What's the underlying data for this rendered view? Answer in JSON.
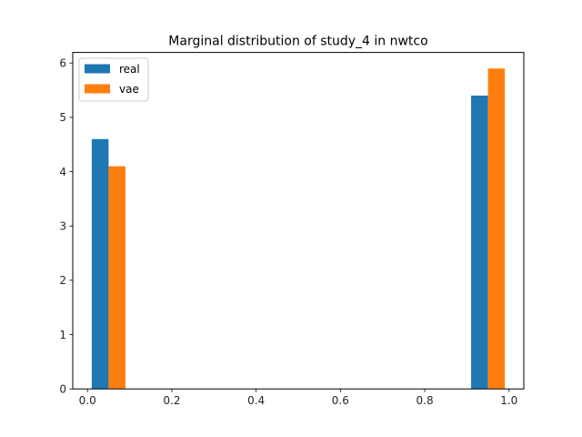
{
  "chart_data": {
    "type": "bar",
    "title": "Marginal distribution of study_4 in nwtco",
    "xlabel": "",
    "ylabel": "",
    "xlim": [
      -0.035,
      1.035
    ],
    "ylim": [
      0,
      6.195
    ],
    "x_ticks": [
      "0.0",
      "0.2",
      "0.4",
      "0.6",
      "0.8",
      "1.0"
    ],
    "y_ticks": [
      "0",
      "1",
      "2",
      "3",
      "4",
      "5",
      "6"
    ],
    "grid": false,
    "legend_position": "top-left",
    "series": [
      {
        "name": "real",
        "color": "#1f77b4",
        "bars": [
          {
            "x0": 0.01,
            "x1": 0.05,
            "value": 4.6
          },
          {
            "x0": 0.91,
            "x1": 0.95,
            "value": 5.4
          }
        ]
      },
      {
        "name": "vae",
        "color": "#ff7f0e",
        "bars": [
          {
            "x0": 0.05,
            "x1": 0.09,
            "value": 4.1
          },
          {
            "x0": 0.95,
            "x1": 0.99,
            "value": 5.9
          }
        ]
      }
    ]
  }
}
